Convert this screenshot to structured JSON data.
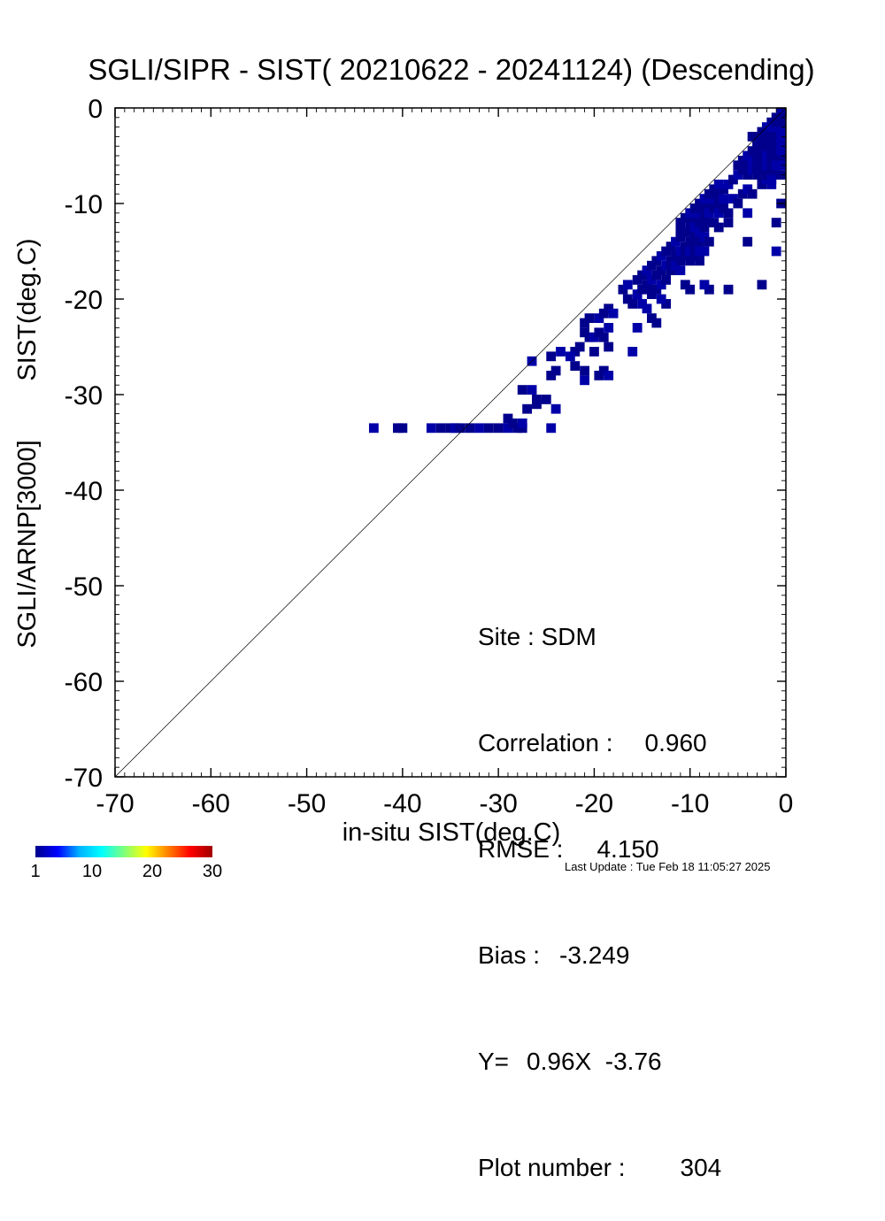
{
  "chart_data": {
    "type": "heatmap",
    "title": "SGLI/SIPR - SIST( 20210622 - 20241124) (Descending)",
    "xlabel": "in-situ SIST(deg.C)",
    "ylabel_top": "SIST(deg.C)",
    "ylabel_bottom": "SGLI/ARNP[3000]",
    "xlim": [
      -70,
      0
    ],
    "ylim": [
      -70,
      0
    ],
    "xticks": [
      "-70",
      "-60",
      "-50",
      "-40",
      "-30",
      "-20",
      "-10",
      "0"
    ],
    "yticks": [
      "-70",
      "-60",
      "-50",
      "-40",
      "-30",
      "-20",
      "-10",
      "0"
    ],
    "reference_line": "y = x",
    "colorbar": {
      "ticks": [
        "1",
        "10",
        "20",
        "30"
      ],
      "range": [
        1,
        30
      ]
    },
    "cell_size": 1,
    "cells": [
      [
        -43,
        -33.5
      ],
      [
        -40.5,
        -33.5
      ],
      [
        -40,
        -33.5
      ],
      [
        -37,
        -33.5
      ],
      [
        -36,
        -33.5
      ],
      [
        -35,
        -33.5
      ],
      [
        -34.5,
        -33.5
      ],
      [
        -34,
        -33.5
      ],
      [
        -33,
        -33.5
      ],
      [
        -32,
        -33.5
      ],
      [
        -31,
        -33.5
      ],
      [
        -30,
        -33.5
      ],
      [
        -29,
        -33.5
      ],
      [
        -28,
        -33.5
      ],
      [
        -27.5,
        -33.5
      ],
      [
        -24.5,
        -33.5
      ],
      [
        -29,
        -32.5
      ],
      [
        -28.5,
        -33
      ],
      [
        -27.5,
        -33
      ],
      [
        -27,
        -31.5
      ],
      [
        -26,
        -31
      ],
      [
        -24,
        -31.5
      ],
      [
        -25,
        -30.5
      ],
      [
        -27.5,
        -29.5
      ],
      [
        -26.5,
        -29.5
      ],
      [
        -26,
        -30.5
      ],
      [
        -24.5,
        -28
      ],
      [
        -26.5,
        -26.5
      ],
      [
        -24,
        -27.5
      ],
      [
        -24.5,
        -26
      ],
      [
        -23.5,
        -25.5
      ],
      [
        -22,
        -25.5
      ],
      [
        -21.5,
        -25
      ],
      [
        -22.5,
        -26
      ],
      [
        -22,
        -27
      ],
      [
        -21,
        -27.5
      ],
      [
        -21,
        -28.5
      ],
      [
        -19.5,
        -28
      ],
      [
        -19,
        -27.5
      ],
      [
        -18.5,
        -28
      ],
      [
        -21,
        -23.5
      ],
      [
        -20.5,
        -24
      ],
      [
        -20,
        -24
      ],
      [
        -19.5,
        -23.5
      ],
      [
        -19,
        -24
      ],
      [
        -18.5,
        -23
      ],
      [
        -21,
        -22.5
      ],
      [
        -20.5,
        -22
      ],
      [
        -19.5,
        -22
      ],
      [
        -19,
        -21.5
      ],
      [
        -18.5,
        -21
      ],
      [
        -18,
        -21.5
      ],
      [
        -20,
        -25.5
      ],
      [
        -18.5,
        -25
      ],
      [
        -16,
        -25.5
      ],
      [
        -17,
        -19
      ],
      [
        -16.5,
        -20
      ],
      [
        -15.5,
        -19.5
      ],
      [
        -15,
        -19
      ],
      [
        -14.5,
        -18.5
      ],
      [
        -14,
        -18
      ],
      [
        -13.5,
        -17.5
      ],
      [
        -13,
        -17
      ],
      [
        -12.5,
        -16.5
      ],
      [
        -12,
        -16
      ],
      [
        -11.5,
        -15.5
      ],
      [
        -11,
        -15
      ],
      [
        -10.5,
        -14.5
      ],
      [
        -16,
        -20.5
      ],
      [
        -15,
        -20.5
      ],
      [
        -14,
        -19.5
      ],
      [
        -13.5,
        -19
      ],
      [
        -13,
        -18.5
      ],
      [
        -12.5,
        -18
      ],
      [
        -12,
        -17
      ],
      [
        -11.5,
        -16.5
      ],
      [
        -11,
        -16
      ],
      [
        -10.5,
        -15.5
      ],
      [
        -16.5,
        -18.5
      ],
      [
        -15.5,
        -18
      ],
      [
        -15,
        -17.5
      ],
      [
        -14.5,
        -17
      ],
      [
        -14,
        -16.5
      ],
      [
        -13.5,
        -16
      ],
      [
        -13,
        -15.5
      ],
      [
        -12.5,
        -15
      ],
      [
        -12,
        -14.5
      ],
      [
        -11.5,
        -14
      ],
      [
        -11,
        -13.5
      ],
      [
        -10.5,
        -13
      ],
      [
        -14.5,
        -21
      ],
      [
        -14,
        -22
      ],
      [
        -13.5,
        -22.5
      ],
      [
        -15.5,
        -23
      ],
      [
        -10,
        -19
      ],
      [
        -10.5,
        -18.5
      ],
      [
        -11,
        -17
      ],
      [
        -12.5,
        -20.5
      ],
      [
        -14,
        -19
      ],
      [
        -13,
        -20
      ],
      [
        -10,
        -12
      ],
      [
        -9.5,
        -11.5
      ],
      [
        -9,
        -11
      ],
      [
        -8.5,
        -10.5
      ],
      [
        -8,
        -10
      ],
      [
        -7.5,
        -9.5
      ],
      [
        -7,
        -9
      ],
      [
        -6.5,
        -8.5
      ],
      [
        -6,
        -8
      ],
      [
        -5.5,
        -7.5
      ],
      [
        -10,
        -13
      ],
      [
        -9.5,
        -12.5
      ],
      [
        -9,
        -12
      ],
      [
        -8.5,
        -11.5
      ],
      [
        -8,
        -11
      ],
      [
        -7.5,
        -10.5
      ],
      [
        -7,
        -10
      ],
      [
        -6.5,
        -9.5
      ],
      [
        -10,
        -14
      ],
      [
        -9.5,
        -13.5
      ],
      [
        -9,
        -13
      ],
      [
        -8.5,
        -12.5
      ],
      [
        -8,
        -12
      ],
      [
        -10,
        -15
      ],
      [
        -9.5,
        -14.5
      ],
      [
        -9,
        -14
      ],
      [
        -8.5,
        -13.5
      ],
      [
        -10,
        -16
      ],
      [
        -9.5,
        -15.5
      ],
      [
        -9,
        -15
      ],
      [
        -11,
        -12
      ],
      [
        -10.5,
        -11.5
      ],
      [
        -10,
        -11
      ],
      [
        -9.5,
        -10.5
      ],
      [
        -9,
        -10
      ],
      [
        -8.5,
        -9.5
      ],
      [
        -8,
        -9
      ],
      [
        -7.5,
        -8.5
      ],
      [
        -7,
        -8
      ],
      [
        -11,
        -13
      ],
      [
        -9,
        -16
      ],
      [
        -8.5,
        -15
      ],
      [
        -8,
        -14
      ],
      [
        -7.5,
        -12
      ],
      [
        -7,
        -11
      ],
      [
        -6.5,
        -10.5
      ],
      [
        -6,
        -11
      ],
      [
        -5.5,
        -9.5
      ],
      [
        -5,
        -10
      ],
      [
        -4.5,
        -9
      ],
      [
        -4,
        -8.5
      ],
      [
        -3.5,
        -9
      ],
      [
        -2.5,
        -8
      ],
      [
        -2,
        -7.5
      ],
      [
        -7,
        -12.5
      ],
      [
        -6,
        -12
      ],
      [
        -4,
        -11
      ],
      [
        -4,
        -14
      ],
      [
        -8,
        -19
      ],
      [
        -8.5,
        -18.5
      ],
      [
        -6,
        -19
      ],
      [
        -2.5,
        -18.5
      ],
      [
        -1,
        -15
      ],
      [
        -1,
        -12
      ],
      [
        -0.5,
        -10
      ],
      [
        -5,
        -7
      ],
      [
        -4.5,
        -6.5
      ],
      [
        -4,
        -6
      ],
      [
        -3.5,
        -5.5
      ],
      [
        -3,
        -5
      ],
      [
        -2.5,
        -4.5
      ],
      [
        -2,
        -4
      ],
      [
        -1.5,
        -3.5
      ],
      [
        -1,
        -3
      ],
      [
        -0.5,
        -2.5
      ],
      [
        -5,
        -6
      ],
      [
        -4.5,
        -5.5
      ],
      [
        -4,
        -5
      ],
      [
        -3.5,
        -4.5
      ],
      [
        -3,
        -4
      ],
      [
        -2.5,
        -3.5
      ],
      [
        -2,
        -3
      ],
      [
        -1.5,
        -2.5
      ],
      [
        -1,
        -2
      ],
      [
        -0.5,
        -1.5
      ],
      [
        -4,
        -7
      ],
      [
        -3.5,
        -6.5
      ],
      [
        -3,
        -6
      ],
      [
        -2.5,
        -5.5
      ],
      [
        -2,
        -5
      ],
      [
        -1.5,
        -4.5
      ],
      [
        -1,
        -4
      ],
      [
        -0.5,
        -3.5
      ],
      [
        -3,
        -7
      ],
      [
        -2.5,
        -6.5
      ],
      [
        -2,
        -6
      ],
      [
        -1.5,
        -5.5
      ],
      [
        -1,
        -5
      ],
      [
        -0.5,
        -4.5
      ],
      [
        -2,
        -7
      ],
      [
        -1.5,
        -6.5
      ],
      [
        -1,
        -6
      ],
      [
        -0.5,
        -5.5
      ],
      [
        -1,
        -1
      ],
      [
        -0.5,
        -0.5
      ],
      [
        -1.5,
        -1.5
      ],
      [
        -0.5,
        -1
      ],
      [
        -2,
        -2
      ],
      [
        -3,
        -3
      ],
      [
        -2.5,
        -2.5
      ],
      [
        -0.5,
        -6
      ],
      [
        -0.5,
        -7
      ],
      [
        -1,
        -7
      ],
      [
        -1.5,
        -7.5
      ],
      [
        -2.5,
        -4
      ],
      [
        -3.5,
        -3
      ],
      [
        -1.5,
        -8
      ]
    ]
  },
  "stats": {
    "site": "Site : SDM",
    "correlation_label": "Correlation :",
    "correlation": "0.960",
    "rmse_label": "RMSE :",
    "rmse": "4.150",
    "bias_label": "Bias :",
    "bias": "-3.249",
    "regression_label": "Y=",
    "regression": "0.96X  -3.76",
    "plot_number_label": "Plot number :",
    "plot_number": "304"
  },
  "footer": "Last Update : Tue Feb 18 11:05:27 2025",
  "colors": {
    "cell": "#00008c",
    "cell_alt": "#0000a8"
  }
}
